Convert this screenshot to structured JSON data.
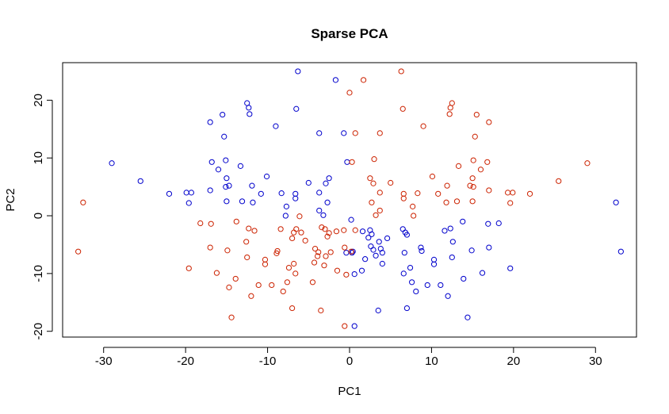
{
  "chart_data": {
    "type": "scatter",
    "title": "Sparse PCA",
    "xlabel": "PC1",
    "ylabel": "PC2",
    "xlim": [
      -35,
      35
    ],
    "ylim": [
      -21,
      26.5
    ],
    "xticks": [
      -30,
      -20,
      -10,
      0,
      10,
      20,
      30
    ],
    "yticks": [
      -20,
      -10,
      0,
      10,
      20
    ],
    "grid": false,
    "legend": "none",
    "colors": {
      "blue": "#0000cc",
      "red": "#cc2200"
    },
    "series": [
      {
        "color": "blue",
        "points": [
          [
            -6.3,
            25.0
          ],
          [
            -1.7,
            23.5
          ],
          [
            -12.5,
            19.5
          ],
          [
            -12.3,
            18.7
          ],
          [
            -6.5,
            18.5
          ],
          [
            -12.2,
            17.6
          ],
          [
            -15.5,
            17.5
          ],
          [
            -17.0,
            16.2
          ],
          [
            -9.0,
            15.5
          ],
          [
            -3.7,
            14.3
          ],
          [
            -0.7,
            14.3
          ],
          [
            -15.3,
            13.7
          ],
          [
            -29.0,
            9.1
          ],
          [
            -0.3,
            9.3
          ],
          [
            -16.8,
            9.3
          ],
          [
            -15.1,
            9.6
          ],
          [
            -16.0,
            8.0
          ],
          [
            -13.3,
            8.6
          ],
          [
            -10.1,
            6.8
          ],
          [
            -15.0,
            6.5
          ],
          [
            -2.5,
            6.5
          ],
          [
            -2.9,
            5.6
          ],
          [
            -5.0,
            5.7
          ],
          [
            -14.7,
            5.2
          ],
          [
            -15.1,
            5.0
          ],
          [
            -25.5,
            6.0
          ],
          [
            -11.9,
            5.2
          ],
          [
            -22.0,
            3.8
          ],
          [
            -19.9,
            4.0
          ],
          [
            -19.3,
            4.0
          ],
          [
            -17.0,
            4.4
          ],
          [
            -10.8,
            3.8
          ],
          [
            -8.3,
            3.9
          ],
          [
            -3.7,
            4.0
          ],
          [
            -6.6,
            3.8
          ],
          [
            -6.6,
            3.0
          ],
          [
            -19.6,
            2.2
          ],
          [
            -13.1,
            2.5
          ],
          [
            -11.8,
            2.3
          ],
          [
            -15.0,
            2.5
          ],
          [
            -2.7,
            2.3
          ],
          [
            -7.7,
            1.6
          ],
          [
            -3.7,
            0.9
          ],
          [
            -3.2,
            0.1
          ],
          [
            -7.8,
            0.0
          ],
          [
            0.2,
            -0.7
          ],
          [
            1.6,
            -2.7
          ],
          [
            2.5,
            -2.5
          ],
          [
            2.7,
            -3.2
          ],
          [
            2.3,
            -3.8
          ],
          [
            4.6,
            -3.9
          ],
          [
            6.5,
            -2.3
          ],
          [
            6.8,
            -2.9
          ],
          [
            7.0,
            -3.3
          ],
          [
            3.6,
            -4.5
          ],
          [
            2.6,
            -5.3
          ],
          [
            2.9,
            -5.9
          ],
          [
            3.8,
            -5.7
          ],
          [
            4.0,
            -6.4
          ],
          [
            0.4,
            -6.2
          ],
          [
            0.3,
            -6.4
          ],
          [
            -0.4,
            -6.4
          ],
          [
            3.2,
            -6.9
          ],
          [
            6.7,
            -6.4
          ],
          [
            8.8,
            -6.1
          ],
          [
            8.7,
            -5.5
          ],
          [
            1.9,
            -7.5
          ],
          [
            1.5,
            -9.5
          ],
          [
            4.0,
            -8.3
          ],
          [
            10.3,
            -7.6
          ],
          [
            10.3,
            -8.4
          ],
          [
            0.6,
            -10.1
          ],
          [
            6.6,
            -10.0
          ],
          [
            7.4,
            -9.0
          ],
          [
            7.6,
            -11.5
          ],
          [
            8.1,
            -13.1
          ],
          [
            9.5,
            -12.0
          ],
          [
            11.1,
            -12.0
          ],
          [
            12.0,
            -13.9
          ],
          [
            3.5,
            -16.4
          ],
          [
            7.0,
            -16.0
          ],
          [
            14.4,
            -17.6
          ],
          [
            0.6,
            -19.1
          ],
          [
            32.5,
            2.3
          ],
          [
            33.1,
            -6.2
          ],
          [
            11.6,
            -2.6
          ],
          [
            12.3,
            -2.2
          ],
          [
            13.8,
            -1.0
          ],
          [
            16.9,
            -1.4
          ],
          [
            18.2,
            -1.3
          ],
          [
            12.6,
            -4.5
          ],
          [
            12.5,
            -7.2
          ],
          [
            14.9,
            -6.0
          ],
          [
            17.0,
            -5.5
          ],
          [
            16.2,
            -9.9
          ],
          [
            19.6,
            -9.1
          ],
          [
            13.9,
            -10.9
          ]
        ]
      },
      {
        "color": "red",
        "points": [
          [
            6.3,
            25.0
          ],
          [
            1.7,
            23.5
          ],
          [
            0.0,
            21.3
          ],
          [
            12.5,
            19.5
          ],
          [
            12.3,
            18.7
          ],
          [
            6.5,
            18.5
          ],
          [
            12.2,
            17.6
          ],
          [
            15.5,
            17.5
          ],
          [
            17.0,
            16.2
          ],
          [
            9.0,
            15.5
          ],
          [
            3.7,
            14.3
          ],
          [
            0.7,
            14.3
          ],
          [
            15.3,
            13.7
          ],
          [
            29.0,
            9.1
          ],
          [
            3.0,
            9.8
          ],
          [
            0.3,
            9.3
          ],
          [
            16.8,
            9.3
          ],
          [
            15.1,
            9.6
          ],
          [
            16.0,
            8.0
          ],
          [
            13.3,
            8.6
          ],
          [
            10.1,
            6.8
          ],
          [
            15.0,
            6.5
          ],
          [
            2.5,
            6.5
          ],
          [
            2.9,
            5.6
          ],
          [
            5.0,
            5.7
          ],
          [
            14.7,
            5.2
          ],
          [
            15.1,
            5.0
          ],
          [
            25.5,
            6.0
          ],
          [
            11.9,
            5.2
          ],
          [
            22.0,
            3.8
          ],
          [
            19.9,
            4.0
          ],
          [
            19.3,
            4.0
          ],
          [
            17.0,
            4.4
          ],
          [
            10.8,
            3.8
          ],
          [
            8.3,
            3.9
          ],
          [
            3.7,
            4.0
          ],
          [
            6.6,
            3.8
          ],
          [
            6.6,
            3.0
          ],
          [
            19.6,
            2.2
          ],
          [
            13.1,
            2.5
          ],
          [
            11.8,
            2.3
          ],
          [
            15.0,
            2.5
          ],
          [
            2.7,
            2.3
          ],
          [
            7.7,
            1.6
          ],
          [
            3.7,
            0.9
          ],
          [
            3.2,
            0.1
          ],
          [
            7.8,
            0.0
          ],
          [
            -32.5,
            2.3
          ],
          [
            -33.1,
            -6.2
          ],
          [
            -6.1,
            -0.1
          ],
          [
            -11.6,
            -2.6
          ],
          [
            -12.3,
            -2.2
          ],
          [
            -13.8,
            -1.0
          ],
          [
            -16.9,
            -1.4
          ],
          [
            -18.2,
            -1.3
          ],
          [
            -8.4,
            -2.3
          ],
          [
            -6.5,
            -2.3
          ],
          [
            -5.9,
            -2.9
          ],
          [
            -3.4,
            -2.0
          ],
          [
            -3.0,
            -2.3
          ],
          [
            -2.5,
            -3.0
          ],
          [
            -2.7,
            -3.6
          ],
          [
            -1.6,
            -2.7
          ],
          [
            -0.7,
            -2.5
          ],
          [
            0.7,
            -2.5
          ],
          [
            -12.6,
            -4.5
          ],
          [
            -14.9,
            -6.0
          ],
          [
            -17.0,
            -5.5
          ],
          [
            -8.8,
            -6.1
          ],
          [
            -8.9,
            -6.5
          ],
          [
            -7.0,
            -3.9
          ],
          [
            -6.8,
            -2.9
          ],
          [
            -5.4,
            -4.3
          ],
          [
            -4.2,
            -5.7
          ],
          [
            -3.8,
            -6.3
          ],
          [
            -3.9,
            -7.0
          ],
          [
            -2.3,
            -6.3
          ],
          [
            -2.9,
            -7.0
          ],
          [
            -0.6,
            -5.5
          ],
          [
            0.2,
            -6.2
          ],
          [
            -12.5,
            -7.2
          ],
          [
            -6.8,
            -8.3
          ],
          [
            -4.3,
            -8.1
          ],
          [
            -3.1,
            -8.6
          ],
          [
            -10.3,
            -7.6
          ],
          [
            -10.3,
            -8.4
          ],
          [
            -16.2,
            -9.9
          ],
          [
            -19.6,
            -9.1
          ],
          [
            -13.9,
            -10.9
          ],
          [
            -6.6,
            -10.0
          ],
          [
            -7.4,
            -9.0
          ],
          [
            -7.6,
            -11.5
          ],
          [
            -8.1,
            -13.1
          ],
          [
            -9.5,
            -12.0
          ],
          [
            -11.1,
            -12.0
          ],
          [
            -12.0,
            -13.9
          ],
          [
            -14.7,
            -12.4
          ],
          [
            -4.5,
            -11.5
          ],
          [
            -0.4,
            -10.2
          ],
          [
            -1.5,
            -9.5
          ],
          [
            -7.0,
            -16.0
          ],
          [
            -3.5,
            -16.4
          ],
          [
            -14.4,
            -17.6
          ],
          [
            -0.6,
            -19.1
          ]
        ]
      }
    ]
  }
}
